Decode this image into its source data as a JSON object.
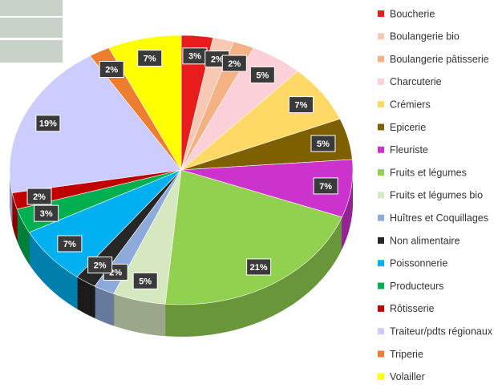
{
  "chart_data": {
    "type": "pie",
    "categories": [
      "Boucherie",
      "Boulangerie bio",
      "Boulangerie pâtisserie",
      "Charcuterie",
      "Crémiers",
      "Epicerie",
      "Fleuriste",
      "Fruits et légumes",
      "Fruits et légumes bio",
      "Huîtres et Coquillages",
      "Non alimentaire",
      "Poissonnerie",
      "Producteurs",
      "Rôtisserie",
      "Traiteur/pdts régionaux",
      "Triperie",
      "Volailler"
    ],
    "values": [
      3,
      2,
      2,
      5,
      7,
      5,
      7,
      21,
      5,
      2,
      2,
      7,
      3,
      2,
      19,
      2,
      7
    ],
    "value_labels": [
      "3%",
      "2%",
      "2%",
      "5%",
      "7%",
      "5%",
      "7%",
      "21%",
      "5%",
      "2%",
      "2%",
      "7%",
      "3%",
      "2%",
      "19%",
      "2%",
      "7%"
    ],
    "colors": [
      "#e81c1c",
      "#f7c9b5",
      "#f4b183",
      "#fbd0d8",
      "#ffd966",
      "#7f6000",
      "#cc33cc",
      "#92d050",
      "#d6e8c0",
      "#8eaadb",
      "#262626",
      "#00b0f0",
      "#00b050",
      "#c00000",
      "#ccccff",
      "#ed7d31",
      "#ffff00"
    ],
    "legend": "right"
  }
}
